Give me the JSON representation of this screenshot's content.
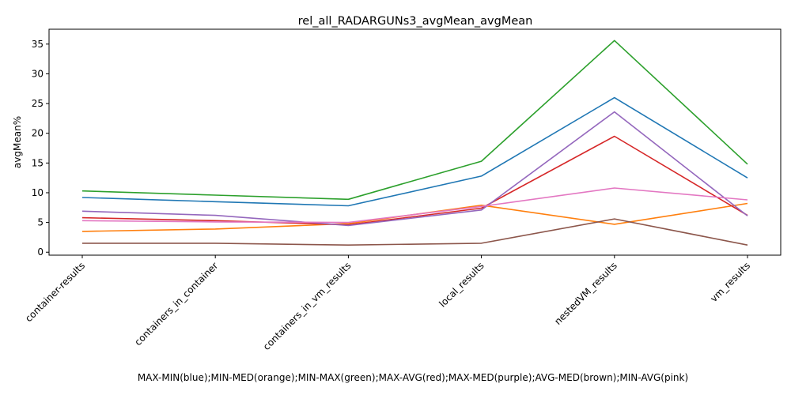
{
  "chart_data": {
    "type": "line",
    "title": "rel_all_RADARGUNs3_avgMean_avgMean",
    "xlabel": "MAX-MIN(blue);MIN-MED(orange);MIN-MAX(green);MAX-AVG(red);MAX-MED(purple);AVG-MED(brown);MIN-AVG(pink)",
    "ylabel": "avgMean%",
    "categories": [
      "container-results",
      "containers_in_container",
      "containers_in_vm_results",
      "local_results",
      "nestedVM_results",
      "vm_results"
    ],
    "ylim": [
      -0.5,
      37.5
    ],
    "yticks": [
      0,
      5,
      10,
      15,
      20,
      25,
      30,
      35
    ],
    "grid": false,
    "legend": "none",
    "series": [
      {
        "color": "#1f77b4",
        "values": [
          9.2,
          8.5,
          7.8,
          12.8,
          26.0,
          12.5
        ]
      },
      {
        "color": "#ff7f0e",
        "values": [
          3.5,
          3.9,
          4.8,
          7.9,
          4.7,
          8.2
        ]
      },
      {
        "color": "#2ca02c",
        "values": [
          10.3,
          9.6,
          8.9,
          15.3,
          35.6,
          14.8
        ]
      },
      {
        "color": "#d62728",
        "values": [
          5.8,
          5.3,
          4.6,
          7.4,
          19.5,
          6.2
        ]
      },
      {
        "color": "#9467bd",
        "values": [
          6.9,
          6.2,
          4.5,
          7.1,
          23.6,
          6.1
        ]
      },
      {
        "color": "#8c564b",
        "values": [
          1.5,
          1.5,
          1.2,
          1.5,
          5.6,
          1.2
        ]
      },
      {
        "color": "#e377c2",
        "values": [
          5.3,
          5.1,
          5.0,
          7.7,
          10.8,
          8.8
        ]
      }
    ]
  }
}
